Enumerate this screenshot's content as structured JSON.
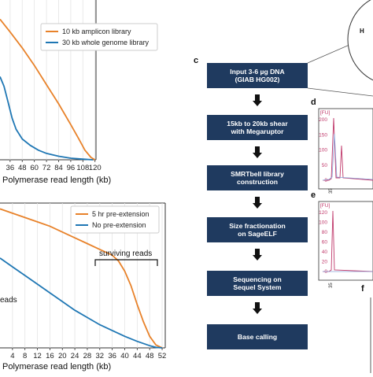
{
  "figure": {
    "panels": {
      "c": "c",
      "d": "d",
      "e": "e",
      "f": "f"
    },
    "workflow_steps": [
      [
        "Input 3-6 µg DNA",
        "(GIAB HG002)"
      ],
      [
        "15kb to 20kb shear",
        "with Megaruptor"
      ],
      [
        "SMRTbell library",
        "construction"
      ],
      [
        "Size fractionation",
        "on SageELF"
      ],
      [
        "Sequencing on",
        "Sequel System"
      ],
      [
        "Base calling"
      ]
    ],
    "corner_label": "H",
    "fu_label": "[FU]",
    "d_yticks": [
      "200",
      "150",
      "100",
      "50",
      "0"
    ],
    "e_yticks": [
      "120",
      "100",
      "80",
      "60",
      "40",
      "20",
      "0"
    ],
    "d_xtick": "35",
    "e_xtick": "35"
  },
  "colors": {
    "orange": "#e8822a",
    "blue": "#1f77b4",
    "box": "#1f3a5f",
    "trace": "#c0396b"
  },
  "chart_data": [
    {
      "type": "line",
      "xlabel": "Polymerase read length (kb)",
      "ylabel": "",
      "xticks": [
        "36",
        "48",
        "60",
        "72",
        "84",
        "96",
        "108",
        "120"
      ],
      "xlim": [
        26,
        121
      ],
      "legend_position": "top-right",
      "series": [
        {
          "name": "10 kb amplicon library",
          "x": [
            26,
            36,
            48,
            60,
            72,
            84,
            96,
            104,
            110,
            116,
            120
          ],
          "y": [
            0.88,
            0.8,
            0.7,
            0.59,
            0.47,
            0.35,
            0.22,
            0.13,
            0.06,
            0.015,
            0.0
          ]
        },
        {
          "name": "30 kb whole genome library",
          "x": [
            26,
            30,
            34,
            38,
            42,
            48,
            56,
            64,
            72,
            84,
            96,
            108,
            118
          ],
          "y": [
            0.52,
            0.46,
            0.36,
            0.26,
            0.19,
            0.13,
            0.09,
            0.06,
            0.04,
            0.022,
            0.01,
            0.004,
            0.0
          ]
        }
      ]
    },
    {
      "type": "line",
      "xlabel": "Polymerase read length (kb)",
      "ylabel": "",
      "xticks": [
        "4",
        "8",
        "12",
        "16",
        "20",
        "24",
        "28",
        "32",
        "36",
        "40",
        "44",
        "48",
        "52"
      ],
      "xlim": [
        0,
        53
      ],
      "legend_position": "top-right",
      "annotations": [
        "surviving reads",
        "eads"
      ],
      "series": [
        {
          "name": "5 hr pre-extension",
          "x": [
            0,
            4,
            8,
            12,
            16,
            20,
            24,
            28,
            32,
            36,
            38,
            40,
            42,
            44,
            46,
            48,
            50,
            52
          ],
          "y": [
            0.96,
            0.93,
            0.9,
            0.87,
            0.84,
            0.8,
            0.76,
            0.72,
            0.68,
            0.64,
            0.6,
            0.53,
            0.43,
            0.3,
            0.18,
            0.08,
            0.02,
            0.0
          ]
        },
        {
          "name": "No pre-extension",
          "x": [
            0,
            4,
            8,
            12,
            16,
            20,
            24,
            28,
            32,
            36,
            40,
            44,
            48,
            50,
            52
          ],
          "y": [
            0.62,
            0.56,
            0.5,
            0.44,
            0.38,
            0.32,
            0.26,
            0.21,
            0.16,
            0.12,
            0.08,
            0.045,
            0.015,
            0.004,
            0.0
          ]
        }
      ]
    }
  ]
}
